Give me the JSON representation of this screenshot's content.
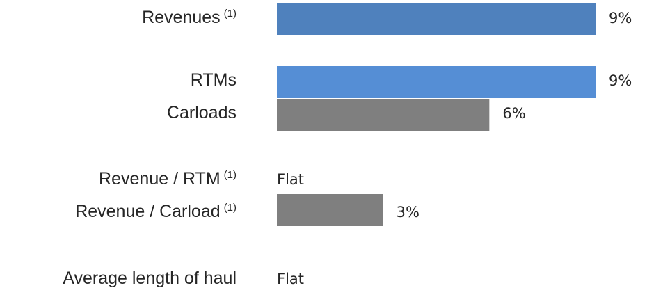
{
  "chart_data": {
    "type": "bar",
    "orientation": "horizontal",
    "categories": [
      {
        "label": "Revenues",
        "note": "(1)"
      },
      {
        "label": "RTMs",
        "note": ""
      },
      {
        "label": "Carloads",
        "note": ""
      },
      {
        "label": "Revenue / RTM",
        "note": "(1)"
      },
      {
        "label": "Revenue / Carload",
        "note": "(1)"
      },
      {
        "label": "Average length of haul",
        "note": ""
      }
    ],
    "values": [
      9,
      9,
      6,
      0,
      3,
      0
    ],
    "value_labels": [
      "9%",
      "9%",
      "6%",
      "Flat",
      "3%",
      "Flat"
    ],
    "colors": [
      "#4f81bd",
      "#558ed5",
      "#7f7f7f",
      "#7f7f7f",
      "#7f7f7f",
      "#7f7f7f"
    ],
    "xlim": [
      0,
      10
    ],
    "grid": false,
    "title": "",
    "xlabel": "",
    "ylabel": ""
  }
}
